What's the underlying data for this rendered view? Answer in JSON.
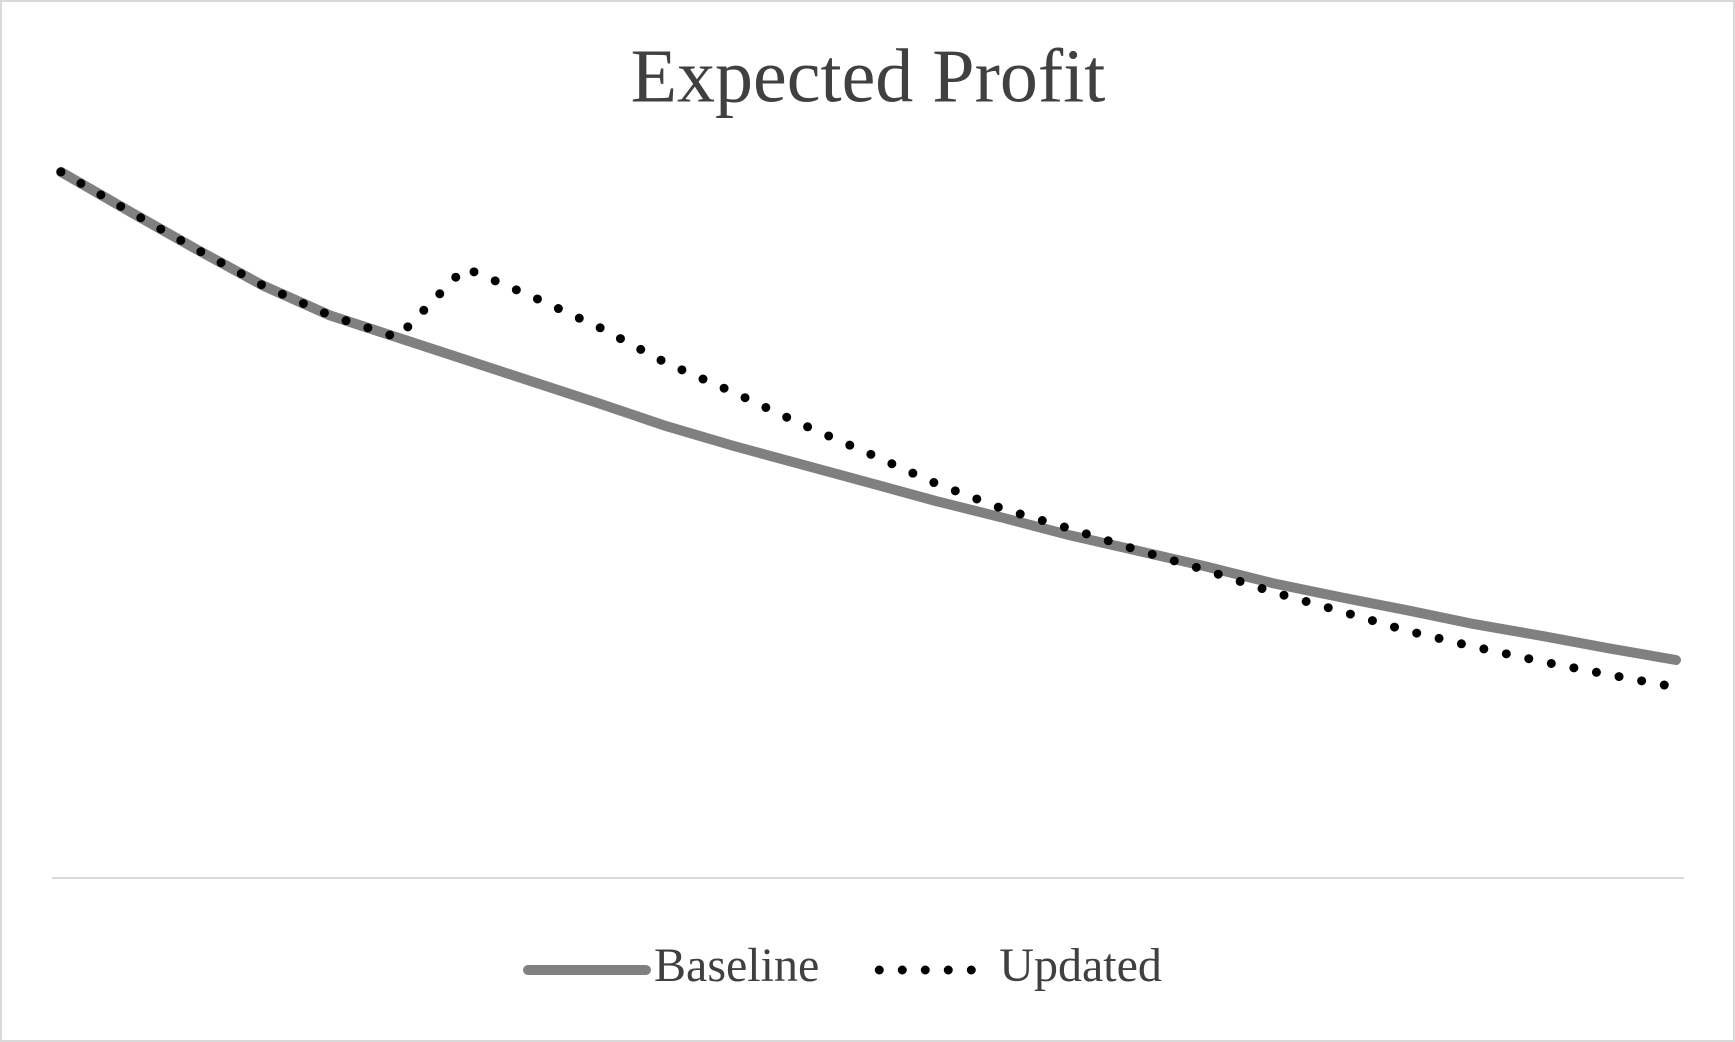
{
  "chart_data": {
    "type": "line",
    "title": "Expected Profit",
    "categories": [
      null,
      null,
      null,
      null,
      null,
      null,
      null,
      null,
      null,
      null,
      null,
      null,
      null,
      null,
      null,
      null,
      null,
      null,
      null,
      null,
      null,
      null,
      null,
      null,
      null
    ],
    "series": [
      {
        "name": "Baseline",
        "color": "#808080",
        "style": "solid",
        "values": [
          96.2,
          90.9,
          85.7,
          80.7,
          76.6,
          73.6,
          70.6,
          67.6,
          64.6,
          61.5,
          58.8,
          56.3,
          53.8,
          51.3,
          49.0,
          46.6,
          44.5,
          42.4,
          40.1,
          38.2,
          36.4,
          34.5,
          32.9,
          31.2,
          29.6
        ]
      },
      {
        "name": "Updated",
        "color": "#000000",
        "style": "dotted",
        "values": [
          96.2,
          90.9,
          85.7,
          80.7,
          76.6,
          73.6,
          83.1,
          79.2,
          75.0,
          70.1,
          66.1,
          61.8,
          57.8,
          53.7,
          50.2,
          47.5,
          44.6,
          41.9,
          38.9,
          36.3,
          33.6,
          31.4,
          29.4,
          27.6,
          25.9
        ]
      }
    ],
    "ylim": [
      0,
      100
    ],
    "legend": "bottom"
  }
}
